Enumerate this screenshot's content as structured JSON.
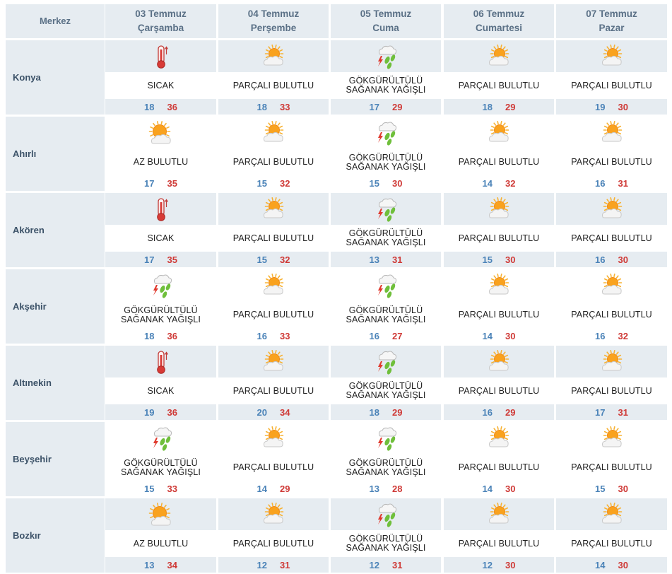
{
  "header": {
    "merkez_label": "Merkez",
    "days": [
      {
        "date": "03 Temmuz",
        "weekday": "Çarşamba"
      },
      {
        "date": "04 Temmuz",
        "weekday": "Perşembe"
      },
      {
        "date": "05 Temmuz",
        "weekday": "Cuma"
      },
      {
        "date": "06 Temmuz",
        "weekday": "Cumartesi"
      },
      {
        "date": "07 Temmuz",
        "weekday": "Pazar"
      }
    ]
  },
  "colors": {
    "header_bg": "#e6ecf1",
    "min_temp": "#4b83b8",
    "max_temp": "#cf3a37"
  },
  "rows": [
    {
      "city": "Konya",
      "layout": "A",
      "days": [
        {
          "icon": "thermometer-hot-icon",
          "desc": [
            "SICAK"
          ],
          "min": "18",
          "max": "36"
        },
        {
          "icon": "partly-cloudy-icon",
          "desc": [
            "PARÇALI BULUTLU"
          ],
          "min": "18",
          "max": "33"
        },
        {
          "icon": "thunderstorm-icon",
          "desc": [
            "GÖKGÜRÜLTÜLÜ",
            "SAĞANAK YAĞIŞLI"
          ],
          "min": "17",
          "max": "29"
        },
        {
          "icon": "partly-cloudy-icon",
          "desc": [
            "PARÇALI BULUTLU"
          ],
          "min": "18",
          "max": "29"
        },
        {
          "icon": "partly-cloudy-icon",
          "desc": [
            "PARÇALI BULUTLU"
          ],
          "min": "19",
          "max": "30"
        }
      ]
    },
    {
      "city": "Ahırlı",
      "layout": "B",
      "days": [
        {
          "icon": "mostly-sunny-icon",
          "desc": [
            "AZ BULUTLU"
          ],
          "min": "17",
          "max": "35"
        },
        {
          "icon": "partly-cloudy-icon",
          "desc": [
            "PARÇALI BULUTLU"
          ],
          "min": "15",
          "max": "32"
        },
        {
          "icon": "thunderstorm-icon",
          "desc": [
            "GÖKGÜRÜLTÜLÜ",
            "SAĞANAK YAĞIŞLI"
          ],
          "min": "15",
          "max": "30"
        },
        {
          "icon": "partly-cloudy-icon",
          "desc": [
            "PARÇALI BULUTLU"
          ],
          "min": "14",
          "max": "32"
        },
        {
          "icon": "partly-cloudy-icon",
          "desc": [
            "PARÇALI BULUTLU"
          ],
          "min": "16",
          "max": "31"
        }
      ]
    },
    {
      "city": "Akören",
      "layout": "A",
      "days": [
        {
          "icon": "thermometer-hot-icon",
          "desc": [
            "SICAK"
          ],
          "min": "17",
          "max": "35"
        },
        {
          "icon": "partly-cloudy-icon",
          "desc": [
            "PARÇALI BULUTLU"
          ],
          "min": "15",
          "max": "32"
        },
        {
          "icon": "thunderstorm-icon",
          "desc": [
            "GÖKGÜRÜLTÜLÜ",
            "SAĞANAK YAĞIŞLI"
          ],
          "min": "13",
          "max": "31"
        },
        {
          "icon": "partly-cloudy-icon",
          "desc": [
            "PARÇALI BULUTLU"
          ],
          "min": "15",
          "max": "30"
        },
        {
          "icon": "partly-cloudy-icon",
          "desc": [
            "PARÇALI BULUTLU"
          ],
          "min": "16",
          "max": "30"
        }
      ]
    },
    {
      "city": "Akşehir",
      "layout": "B",
      "days": [
        {
          "icon": "thunderstorm-icon",
          "desc": [
            "GÖKGÜRÜLTÜLÜ",
            "SAĞANAK YAĞIŞLI"
          ],
          "min": "18",
          "max": "36"
        },
        {
          "icon": "partly-cloudy-icon",
          "desc": [
            "PARÇALI BULUTLU"
          ],
          "min": "16",
          "max": "33"
        },
        {
          "icon": "thunderstorm-icon",
          "desc": [
            "GÖKGÜRÜLTÜLÜ",
            "SAĞANAK YAĞIŞLI"
          ],
          "min": "16",
          "max": "27"
        },
        {
          "icon": "partly-cloudy-icon",
          "desc": [
            "PARÇALI BULUTLU"
          ],
          "min": "14",
          "max": "30"
        },
        {
          "icon": "partly-cloudy-icon",
          "desc": [
            "PARÇALI BULUTLU"
          ],
          "min": "16",
          "max": "32"
        }
      ]
    },
    {
      "city": "Altınekin",
      "layout": "A",
      "days": [
        {
          "icon": "thermometer-hot-icon",
          "desc": [
            "SICAK"
          ],
          "min": "19",
          "max": "36"
        },
        {
          "icon": "partly-cloudy-icon",
          "desc": [
            "PARÇALI BULUTLU"
          ],
          "min": "20",
          "max": "34"
        },
        {
          "icon": "thunderstorm-icon",
          "desc": [
            "GÖKGÜRÜLTÜLÜ",
            "SAĞANAK YAĞIŞLI"
          ],
          "min": "18",
          "max": "29"
        },
        {
          "icon": "partly-cloudy-icon",
          "desc": [
            "PARÇALI BULUTLU"
          ],
          "min": "16",
          "max": "29"
        },
        {
          "icon": "partly-cloudy-icon",
          "desc": [
            "PARÇALI BULUTLU"
          ],
          "min": "17",
          "max": "31"
        }
      ]
    },
    {
      "city": "Beyşehir",
      "layout": "B",
      "days": [
        {
          "icon": "thunderstorm-icon",
          "desc": [
            "GÖKGÜRÜLTÜLÜ",
            "SAĞANAK YAĞIŞLI"
          ],
          "min": "15",
          "max": "33"
        },
        {
          "icon": "partly-cloudy-icon",
          "desc": [
            "PARÇALI BULUTLU"
          ],
          "min": "14",
          "max": "29"
        },
        {
          "icon": "thunderstorm-icon",
          "desc": [
            "GÖKGÜRÜLTÜLÜ",
            "SAĞANAK YAĞIŞLI"
          ],
          "min": "13",
          "max": "28"
        },
        {
          "icon": "partly-cloudy-icon",
          "desc": [
            "PARÇALI BULUTLU"
          ],
          "min": "14",
          "max": "30"
        },
        {
          "icon": "partly-cloudy-icon",
          "desc": [
            "PARÇALI BULUTLU"
          ],
          "min": "15",
          "max": "30"
        }
      ]
    },
    {
      "city": "Bozkır",
      "layout": "A",
      "days": [
        {
          "icon": "mostly-sunny-icon",
          "desc": [
            "AZ BULUTLU"
          ],
          "min": "13",
          "max": "34"
        },
        {
          "icon": "partly-cloudy-icon",
          "desc": [
            "PARÇALI BULUTLU"
          ],
          "min": "12",
          "max": "31"
        },
        {
          "icon": "thunderstorm-icon",
          "desc": [
            "GÖKGÜRÜLTÜLÜ",
            "SAĞANAK YAĞIŞLI"
          ],
          "min": "12",
          "max": "31"
        },
        {
          "icon": "partly-cloudy-icon",
          "desc": [
            "PARÇALI BULUTLU"
          ],
          "min": "12",
          "max": "30"
        },
        {
          "icon": "partly-cloudy-icon",
          "desc": [
            "PARÇALI BULUTLU"
          ],
          "min": "14",
          "max": "30"
        }
      ]
    }
  ]
}
